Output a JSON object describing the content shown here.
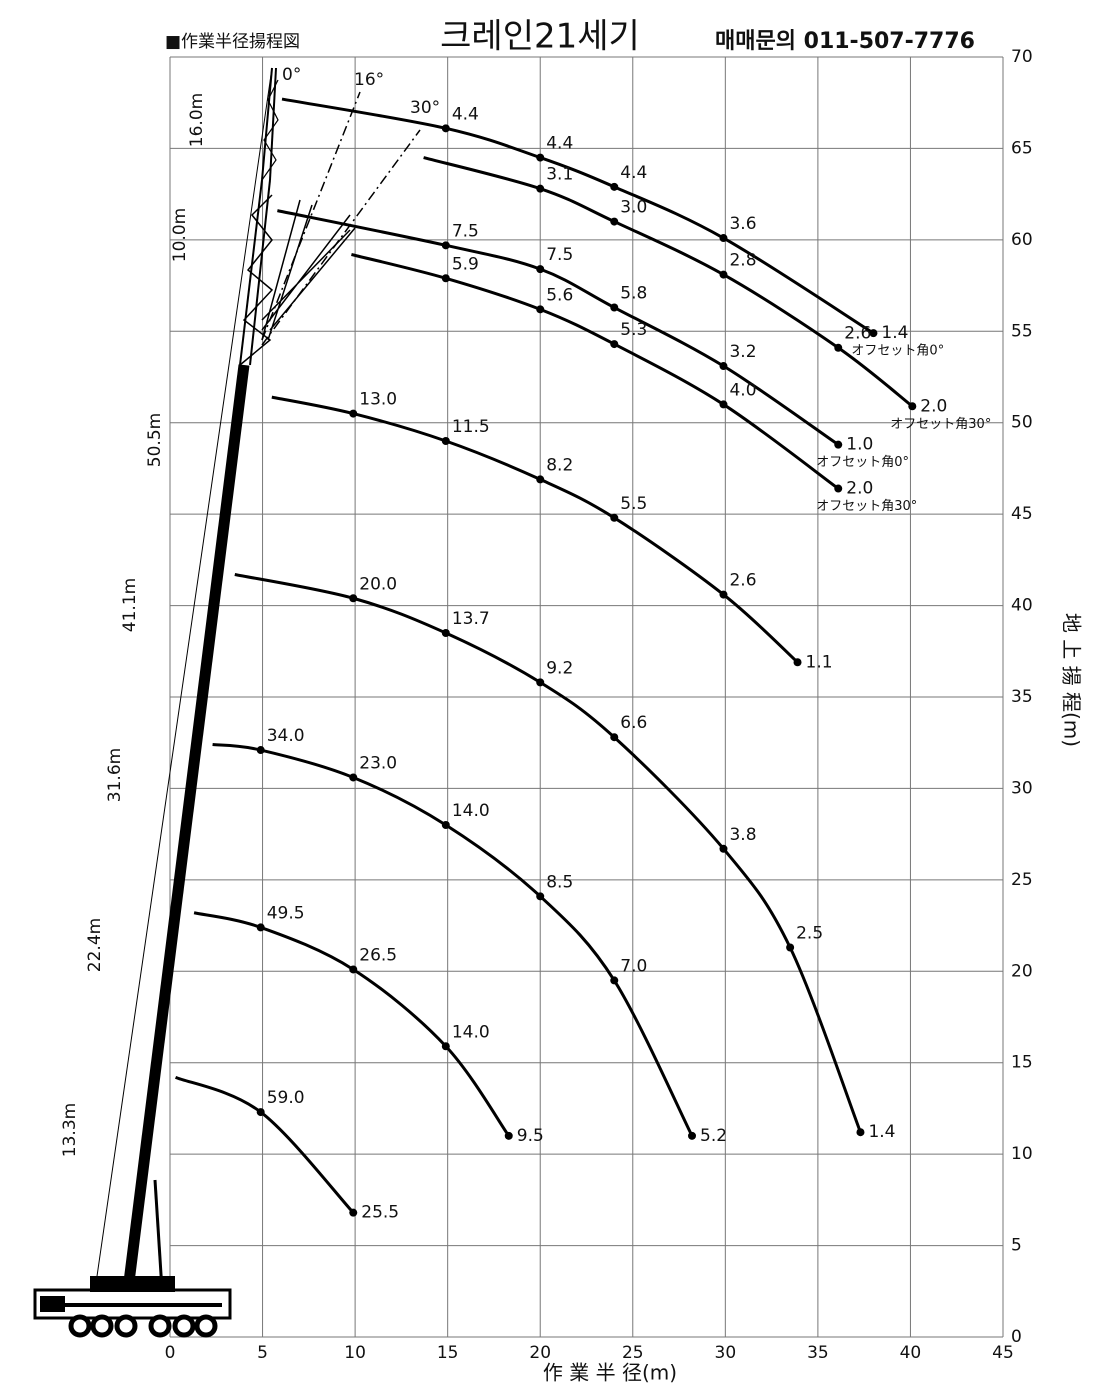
{
  "chart_data": {
    "type": "line",
    "title": "■作業半径揚程図",
    "banner": "크레인21세기",
    "contact": "매매문의 011-507-7776",
    "x_label": "作 業 半 径(m)",
    "y_label": "地 上 揚 程(m)",
    "xlim": [
      0,
      45
    ],
    "xticks": [
      0,
      5,
      10,
      15,
      20,
      25,
      30,
      35,
      40,
      45
    ],
    "ylim": [
      0,
      70
    ],
    "yticks": [
      0,
      5,
      10,
      15,
      20,
      25,
      30,
      35,
      40,
      45,
      50,
      55,
      60,
      65,
      70
    ],
    "grid": true,
    "color": "#000000",
    "boom_lengths": [
      "16.0m",
      "10.0m",
      "50.5m",
      "41.1m",
      "31.6m",
      "22.4m",
      "13.3m"
    ],
    "offset_angles": [
      "0°",
      "16°",
      "30°"
    ],
    "series": [
      {
        "x": [
          6.05,
          14.9,
          20,
          24,
          29.9,
          38
        ],
        "y": [
          67.7,
          66.1,
          64.5,
          62.9,
          60.1,
          54.9
        ],
        "loads": [
          null,
          "4.4",
          "4.4",
          "4.4",
          "3.6",
          "1.4"
        ],
        "note": "オフセット角0°"
      },
      {
        "x": [
          13.7,
          20,
          24,
          29.9,
          36.1,
          40.1
        ],
        "y": [
          64.5,
          62.8,
          61.0,
          58.1,
          54.1,
          50.9
        ],
        "loads": [
          null,
          "3.1",
          "3.0",
          "2.8",
          "2.6",
          "2.0"
        ],
        "note": "オフセット角30°"
      },
      {
        "x": [
          5.8,
          14.9,
          20,
          24,
          29.9,
          36.1
        ],
        "y": [
          61.6,
          59.7,
          58.4,
          56.3,
          53.1,
          48.8
        ],
        "loads": [
          null,
          "7.5",
          "7.5",
          "5.8",
          "3.2",
          "1.0"
        ],
        "note": "オフセット角0°"
      },
      {
        "x": [
          9.8,
          14.9,
          20,
          24,
          29.9,
          36.1
        ],
        "y": [
          59.2,
          57.9,
          56.2,
          54.3,
          51.0,
          46.4
        ],
        "loads": [
          null,
          "5.9",
          "5.6",
          "5.3",
          "4.0",
          "2.0"
        ],
        "note": "オフセット角30°"
      },
      {
        "x": [
          5.5,
          9.9,
          14.9,
          20,
          24,
          29.9,
          33.9
        ],
        "y": [
          51.4,
          50.5,
          49.0,
          46.9,
          44.8,
          40.6,
          36.9
        ],
        "loads": [
          null,
          "13.0",
          "11.5",
          "8.2",
          "5.5",
          "2.6",
          "1.1"
        ]
      },
      {
        "x": [
          3.5,
          9.9,
          14.9,
          20,
          24,
          29.9,
          33.5,
          37.3
        ],
        "y": [
          41.7,
          40.4,
          38.5,
          35.8,
          32.8,
          26.7,
          21.3,
          11.2
        ],
        "loads": [
          null,
          "20.0",
          "13.7",
          "9.2",
          "6.6",
          "3.8",
          "2.5",
          "1.4"
        ]
      },
      {
        "x": [
          2.3,
          4.9,
          9.9,
          14.9,
          20,
          24,
          28.2
        ],
        "y": [
          32.4,
          32.1,
          30.6,
          28.0,
          24.1,
          19.5,
          11.0
        ],
        "loads": [
          null,
          "34.0",
          "23.0",
          "14.0",
          "8.5",
          "7.0",
          "5.2"
        ]
      },
      {
        "x": [
          1.3,
          4.9,
          9.9,
          14.9,
          18.3
        ],
        "y": [
          23.2,
          22.4,
          20.1,
          15.9,
          11.0
        ],
        "loads": [
          null,
          "49.5",
          "26.5",
          "14.0",
          "9.5"
        ]
      },
      {
        "x": [
          0.3,
          4.9,
          9.9
        ],
        "y": [
          14.2,
          12.3,
          6.8
        ],
        "loads": [
          null,
          "59.0",
          "25.5"
        ]
      }
    ]
  }
}
